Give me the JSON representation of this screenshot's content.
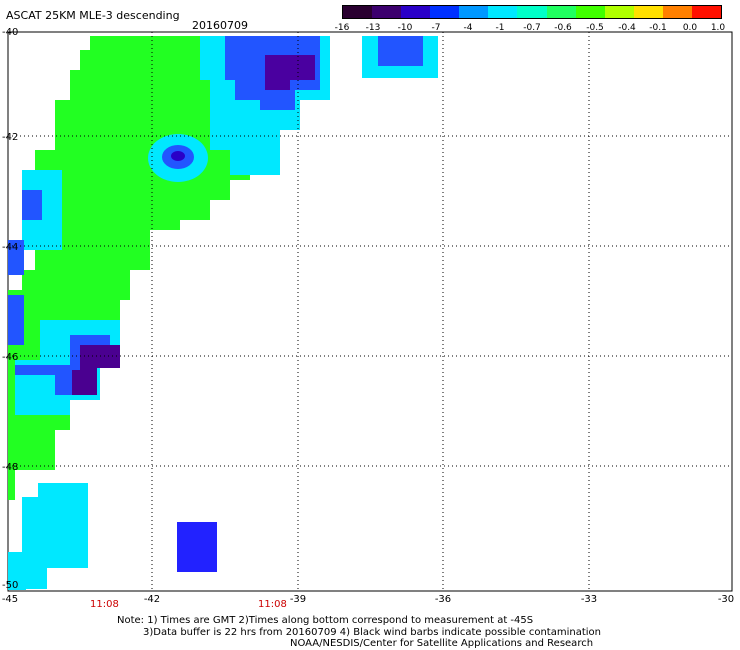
{
  "title": "ASCAT 25KM MLE-3 descending",
  "date": "20160709",
  "colorbar": {
    "labels": [
      "-16",
      "-13",
      "-10",
      "-7",
      "-4",
      "-1",
      "-0.7",
      "-0.6",
      "-0.5",
      "-0.4",
      "-0.1",
      "0.0",
      "1.0"
    ],
    "colors": [
      "#2a0030",
      "#3c006e",
      "#2a00c8",
      "#0030ff",
      "#0098ff",
      "#00e8ff",
      "#00ffc8",
      "#20ff60",
      "#40ff00",
      "#b0ff00",
      "#ffe000",
      "#ff8000",
      "#ff1000"
    ]
  },
  "axes": {
    "lat_ticks": [
      "-40",
      "-42",
      "-44",
      "-46",
      "-48",
      "-50"
    ],
    "lon_ticks": [
      "-45",
      "-42",
      "-39",
      "-36",
      "-33",
      "-30"
    ]
  },
  "time_labels": [
    "11:08",
    "11:08"
  ],
  "notes": {
    "line1": "Note: 1) Times are GMT 2)Times along bottom correspond to measurement at -45S",
    "line2": "3)Data buffer is 22 hrs from 20160709 4) Black wind barbs indicate possible contamination",
    "line3": "NOAA/NESDIS/Center for Satellite Applications and Research"
  },
  "colors": {
    "green": "#22ff22",
    "cyan": "#00e8ff",
    "blue": "#2222ff",
    "dark_purple": "#4a0090",
    "light_blue": "#40b0ff"
  }
}
